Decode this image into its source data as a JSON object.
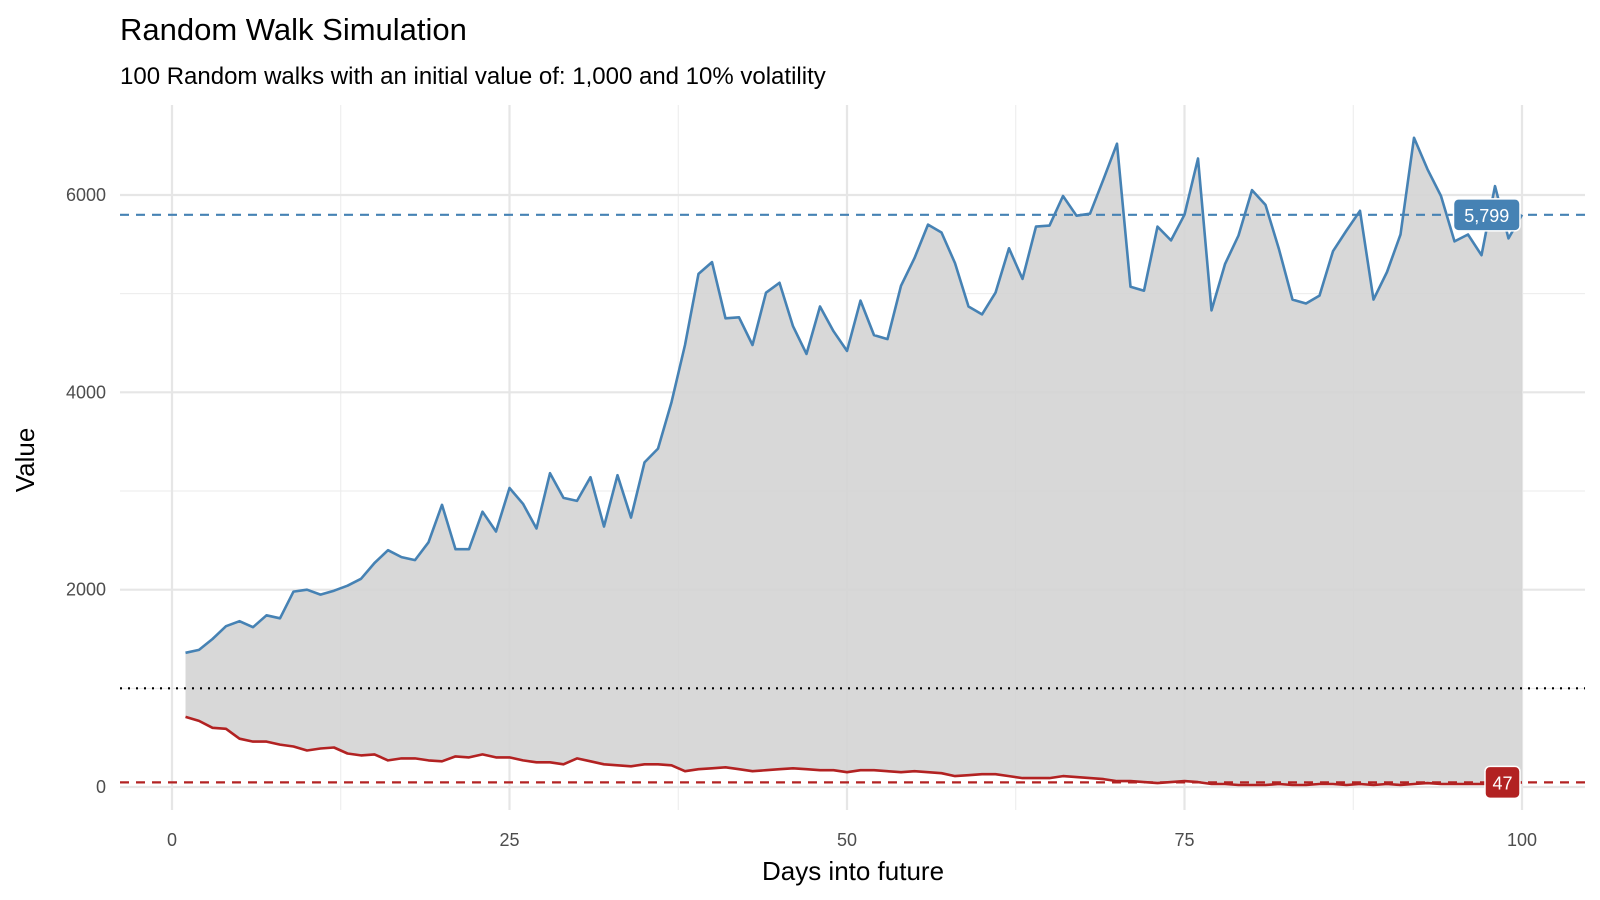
{
  "chart_data": {
    "type": "area",
    "title": "Random Walk Simulation",
    "subtitle": "100 Random walks with an initial value of: 1,000 and 10% volatility",
    "xlabel": "Days into future",
    "ylabel": "Value",
    "xlim": [
      0,
      100
    ],
    "ylim": [
      0,
      6600
    ],
    "x_ticks": [
      0,
      25,
      50,
      75,
      100
    ],
    "y_ticks": [
      0,
      2000,
      4000,
      6000
    ],
    "grid": true,
    "reference_lines": [
      {
        "value": 1000,
        "style": "dotted",
        "color": "#000000"
      },
      {
        "value": 5799,
        "style": "dashed",
        "color": "#4682b4",
        "label": "5,799"
      },
      {
        "value": 47,
        "style": "dashed",
        "color": "#b22222",
        "label": "47"
      }
    ],
    "fill_color": "#d4d4d4",
    "series": [
      {
        "color": "#4682b4",
        "x": [
          1,
          2,
          3,
          4,
          5,
          6,
          7,
          8,
          9,
          10,
          11,
          12,
          13,
          14,
          15,
          16,
          17,
          18,
          19,
          20,
          21,
          22,
          23,
          24,
          25,
          26,
          27,
          28,
          29,
          30,
          31,
          32,
          33,
          34,
          35,
          36,
          37,
          38,
          39,
          40,
          41,
          42,
          43,
          44,
          45,
          46,
          47,
          48,
          49,
          50,
          51,
          52,
          53,
          54,
          55,
          56,
          57,
          58,
          59,
          60,
          61,
          62,
          63,
          64,
          65,
          66,
          67,
          68,
          69,
          70,
          71,
          72,
          73,
          74,
          75,
          76,
          77,
          78,
          79,
          80,
          81,
          82,
          83,
          84,
          85,
          86,
          87,
          88,
          89,
          90,
          91,
          92,
          93,
          94,
          95,
          96,
          97,
          98,
          99,
          100
        ],
        "values": [
          1360,
          1390,
          1500,
          1630,
          1680,
          1620,
          1740,
          1710,
          1980,
          2000,
          1950,
          1990,
          2040,
          2110,
          2270,
          2400,
          2330,
          2300,
          2480,
          2860,
          2410,
          2410,
          2790,
          2590,
          3030,
          2870,
          2620,
          3180,
          2930,
          2900,
          3140,
          2640,
          3160,
          2730,
          3290,
          3430,
          3900,
          4480,
          5200,
          5320,
          4750,
          4760,
          4480,
          5010,
          5110,
          4670,
          4390,
          4870,
          4620,
          4420,
          4930,
          4580,
          4540,
          5080,
          5360,
          5700,
          5620,
          5310,
          4870,
          4790,
          5010,
          5460,
          5150,
          5680,
          5690,
          5990,
          5790,
          5810,
          6160,
          6520,
          5070,
          5030,
          5680,
          5540,
          5800,
          6370,
          4830,
          5300,
          5590,
          6050,
          5900,
          5450,
          4940,
          4900,
          4980,
          5430,
          5640,
          5840,
          4940,
          5220,
          5600,
          6580,
          6260,
          5990,
          5530,
          5600,
          5390,
          6090,
          5560,
          5800
        ]
      },
      {
        "color": "#b22222",
        "x": [
          1,
          2,
          3,
          4,
          5,
          6,
          7,
          8,
          9,
          10,
          11,
          12,
          13,
          14,
          15,
          16,
          17,
          18,
          19,
          20,
          21,
          22,
          23,
          24,
          25,
          26,
          27,
          28,
          29,
          30,
          31,
          32,
          33,
          34,
          35,
          36,
          37,
          38,
          39,
          40,
          41,
          42,
          43,
          44,
          45,
          46,
          47,
          48,
          49,
          50,
          51,
          52,
          53,
          54,
          55,
          56,
          57,
          58,
          59,
          60,
          61,
          62,
          63,
          64,
          65,
          66,
          67,
          68,
          69,
          70,
          71,
          72,
          73,
          74,
          75,
          76,
          77,
          78,
          79,
          80,
          81,
          82,
          83,
          84,
          85,
          86,
          87,
          88,
          89,
          90,
          91,
          92,
          93,
          94,
          95,
          96,
          97,
          98,
          99,
          100
        ],
        "values": [
          710,
          670,
          600,
          590,
          490,
          460,
          460,
          430,
          410,
          370,
          390,
          400,
          340,
          320,
          330,
          270,
          290,
          290,
          270,
          260,
          310,
          300,
          330,
          300,
          300,
          270,
          250,
          250,
          230,
          290,
          260,
          230,
          220,
          210,
          230,
          230,
          220,
          160,
          180,
          190,
          200,
          180,
          160,
          170,
          180,
          190,
          180,
          170,
          170,
          150,
          170,
          170,
          160,
          150,
          160,
          150,
          140,
          110,
          120,
          130,
          130,
          110,
          90,
          90,
          90,
          110,
          100,
          90,
          80,
          60,
          60,
          50,
          40,
          50,
          60,
          50,
          30,
          30,
          20,
          20,
          20,
          30,
          20,
          20,
          30,
          30,
          20,
          30,
          20,
          30,
          20,
          30,
          40,
          30,
          30,
          30,
          30,
          30,
          40,
          47
        ]
      }
    ]
  }
}
